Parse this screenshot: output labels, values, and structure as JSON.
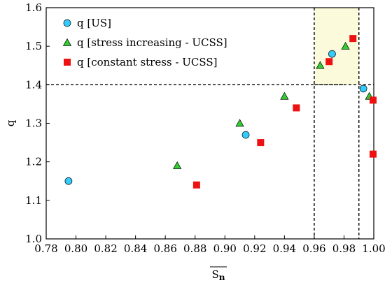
{
  "chart_data": {
    "type": "scatter",
    "title": "",
    "xlabel": "S",
    "xlabel_subscript": "n",
    "ylabel": "q",
    "xlim": [
      0.78,
      1.0
    ],
    "ylim": [
      1.0,
      1.6
    ],
    "x_ticks": [
      "0.78",
      "0.80",
      "0.82",
      "0.84",
      "0.86",
      "0.88",
      "0.90",
      "0.92",
      "0.94",
      "0.96",
      "0.98",
      "1.00"
    ],
    "y_ticks": [
      "1.0",
      "1.1",
      "1.2",
      "1.3",
      "1.4",
      "1.5",
      "1.6"
    ],
    "grid": false,
    "legend_position": "top-left",
    "reference_lines": {
      "horizontal_y": 1.4,
      "vertical_x": [
        0.96,
        0.99
      ],
      "highlight_region": {
        "x": [
          0.96,
          0.99
        ],
        "y": [
          1.4,
          1.6
        ],
        "color": "#FBFBDC"
      }
    },
    "series": [
      {
        "name": "q [US]",
        "marker": "circle",
        "color": "#33CCFF",
        "points": [
          [
            0.795,
            1.15
          ],
          [
            0.914,
            1.27
          ],
          [
            0.972,
            1.48
          ],
          [
            0.993,
            1.39
          ]
        ]
      },
      {
        "name": "q [stress increasing - UCSS]",
        "marker": "triangle",
        "color": "#33CC33",
        "points": [
          [
            0.868,
            1.19
          ],
          [
            0.91,
            1.3
          ],
          [
            0.94,
            1.37
          ],
          [
            0.964,
            1.45
          ],
          [
            0.981,
            1.5
          ],
          [
            0.997,
            1.37
          ]
        ]
      },
      {
        "name": "q [constant stress - UCSS]",
        "marker": "square",
        "color": "#EE1111",
        "points": [
          [
            0.881,
            1.14
          ],
          [
            0.924,
            1.25
          ],
          [
            0.948,
            1.34
          ],
          [
            0.97,
            1.46
          ],
          [
            0.986,
            1.52
          ],
          [
            0.9995,
            1.36
          ],
          [
            0.9995,
            1.22
          ]
        ]
      }
    ]
  }
}
